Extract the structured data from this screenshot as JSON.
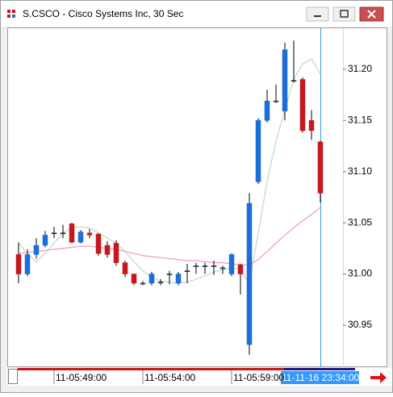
{
  "chart_data": {
    "type": "candlestick",
    "title": "S.CSCO - Cisco Systems Inc, 30 Sec",
    "categories": [
      null,
      null,
      null,
      null,
      "11-05:49:00",
      null,
      null,
      null,
      null,
      null,
      null,
      null,
      null,
      null,
      "11-05:54:00",
      null,
      null,
      null,
      null,
      null,
      null,
      null,
      null,
      null,
      "11-05:59:00",
      null,
      null,
      null,
      null,
      null,
      null,
      null,
      null,
      null,
      "11-11-16 23:34:00"
    ],
    "open": [
      31.019,
      31.0,
      31.019,
      31.028,
      31.04,
      31.04,
      31.049,
      31.031,
      31.04,
      31.039,
      31.028,
      31.03,
      31.011,
      31.0,
      30.991,
      30.991,
      30.992,
      31.0,
      30.991,
      31.003,
      31.008,
      31.008,
      31.008,
      31.006,
      31.0,
      31.009,
      30.931,
      31.09,
      31.15,
      31.169,
      31.159,
      31.189,
      31.19,
      31.15,
      31.129
    ],
    "high": [
      31.031,
      31.024,
      31.035,
      31.042,
      31.046,
      31.048,
      31.05,
      31.043,
      31.044,
      31.04,
      31.032,
      31.033,
      31.013,
      31.0,
      30.993,
      31.002,
      30.995,
      31.003,
      31.002,
      31.01,
      31.011,
      31.011,
      31.013,
      31.008,
      31.02,
      31.01,
      31.079,
      31.152,
      31.18,
      31.185,
      31.226,
      31.228,
      31.192,
      31.16,
      31.13
    ],
    "low": [
      30.991,
      30.998,
      31.015,
      31.026,
      31.035,
      31.035,
      31.03,
      31.03,
      31.035,
      31.018,
      31.016,
      31.008,
      30.997,
      30.989,
      30.989,
      30.989,
      30.989,
      30.99,
      30.989,
      30.991,
      31.0,
      31.0,
      30.999,
      31.0,
      30.998,
      30.98,
      30.921,
      31.088,
      31.148,
      31.167,
      31.15,
      31.187,
      31.138,
      31.131,
      31.07
    ],
    "close": [
      31.0,
      31.019,
      31.028,
      31.038,
      31.04,
      31.04,
      31.031,
      31.041,
      31.038,
      31.02,
      31.019,
      31.011,
      31.0,
      30.991,
      30.991,
      31.0,
      30.992,
      31.0,
      31.0,
      31.003,
      31.008,
      31.008,
      31.008,
      31.006,
      31.019,
      31.0,
      31.069,
      31.15,
      31.169,
      31.169,
      31.219,
      31.189,
      31.14,
      31.14,
      31.079
    ],
    "up_color": "#1c6fd8",
    "down_color": "#c8161d",
    "series": [
      {
        "color": "#bfe0c0",
        "values": [
          31.03,
          31.02,
          31.012,
          31.02,
          31.03,
          31.04,
          31.045,
          31.046,
          31.045,
          31.04,
          31.035,
          31.03,
          31.022,
          31.012,
          31.003,
          30.997,
          30.993,
          30.992,
          30.991,
          30.992,
          30.995,
          30.998,
          31.002,
          31.004,
          31.006,
          31.005,
          30.99,
          31.04,
          31.09,
          31.13,
          31.16,
          31.19,
          31.205,
          31.21,
          31.195
        ]
      },
      {
        "color": "#f0a0c8",
        "values": [
          31.02,
          31.021,
          31.022,
          31.023,
          31.024,
          31.025,
          31.026,
          31.027,
          31.027,
          31.026,
          31.025,
          31.024,
          31.022,
          31.02,
          31.018,
          31.017,
          31.016,
          31.015,
          31.014,
          31.013,
          31.013,
          31.012,
          31.011,
          31.011,
          31.01,
          31.009,
          31.009,
          31.014,
          31.022,
          31.03,
          31.038,
          31.045,
          31.052,
          31.058,
          31.065
        ]
      }
    ],
    "ylim": [
      30.909,
      31.24
    ],
    "yticks": [
      30.95,
      {
        "value": 31,
        "label": "31.00"
      },
      31.05,
      {
        "value": 31.1,
        "label": "31.10"
      },
      31.15,
      {
        "value": 31.2,
        "label": "31.20"
      }
    ]
  }
}
